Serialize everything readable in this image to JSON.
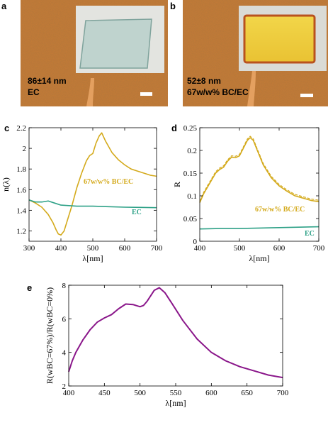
{
  "colors": {
    "gold": "#D4AA1C",
    "teal": "#2EA187",
    "purple": "#8A168A",
    "afm": "#C77A35"
  },
  "panels": {
    "a": {
      "letter": "a",
      "thickness": "86±14 nm",
      "material": "EC"
    },
    "b": {
      "letter": "b",
      "thickness": "52±8 nm",
      "material": "67w/w% BC/EC"
    }
  },
  "chart_data": [
    {
      "panel": "c",
      "type": "line",
      "xlabel": "λ[nm]",
      "ylabel": "n(λ)",
      "xlim": [
        300,
        700
      ],
      "ylim": [
        1.1,
        2.2
      ],
      "xticks": [
        300,
        400,
        500,
        600,
        700
      ],
      "yticks": [
        1.2,
        1.4,
        1.6,
        1.8,
        2,
        2.2
      ],
      "series": [
        {
          "name": "67w/w% BC/EC",
          "x": [
            300,
            320,
            340,
            360,
            375,
            385,
            392,
            400,
            410,
            420,
            435,
            450,
            465,
            480,
            490,
            500,
            510,
            520,
            528,
            540,
            560,
            580,
            600,
            620,
            640,
            660,
            680,
            700
          ],
          "y": [
            1.5,
            1.47,
            1.43,
            1.36,
            1.28,
            1.21,
            1.17,
            1.16,
            1.2,
            1.3,
            1.45,
            1.62,
            1.76,
            1.88,
            1.93,
            1.95,
            2.05,
            2.12,
            2.15,
            2.07,
            1.96,
            1.89,
            1.84,
            1.8,
            1.78,
            1.76,
            1.74,
            1.73
          ]
        },
        {
          "name": "EC",
          "x": [
            300,
            320,
            340,
            360,
            380,
            400,
            450,
            500,
            550,
            600,
            650,
            700
          ],
          "y": [
            1.5,
            1.48,
            1.48,
            1.49,
            1.47,
            1.45,
            1.44,
            1.44,
            1.435,
            1.43,
            1.428,
            1.425
          ]
        }
      ]
    },
    {
      "panel": "d",
      "type": "line",
      "xlabel": "λ[nm]",
      "ylabel": "R",
      "xlim": [
        400,
        700
      ],
      "ylim": [
        0,
        0.25
      ],
      "xticks": [
        400,
        500,
        600,
        700
      ],
      "yticks": [
        0,
        0.05,
        0.1,
        0.15,
        0.2,
        0.25
      ],
      "series": [
        {
          "name": "67w/w% BC/EC",
          "x": [
            400,
            410,
            420,
            430,
            440,
            450,
            460,
            470,
            480,
            490,
            500,
            510,
            520,
            527,
            535,
            545,
            560,
            580,
            600,
            620,
            640,
            660,
            680,
            700
          ],
          "y": [
            0.085,
            0.105,
            0.12,
            0.135,
            0.15,
            0.158,
            0.163,
            0.176,
            0.185,
            0.184,
            0.188,
            0.205,
            0.222,
            0.228,
            0.222,
            0.2,
            0.168,
            0.14,
            0.122,
            0.11,
            0.1,
            0.095,
            0.09,
            0.087
          ]
        },
        {
          "name": "EC",
          "x": [
            400,
            450,
            500,
            550,
            600,
            650,
            700
          ],
          "y": [
            0.027,
            0.028,
            0.028,
            0.029,
            0.03,
            0.031,
            0.032
          ]
        }
      ]
    },
    {
      "panel": "e",
      "type": "line",
      "xlabel": "λ[nm]",
      "ylabel": "R(wBC=67%)/R(wBC=0%)",
      "xlim": [
        400,
        700
      ],
      "ylim": [
        2,
        8
      ],
      "xticks": [
        400,
        450,
        500,
        550,
        600,
        650,
        700
      ],
      "yticks": [
        2,
        4,
        6,
        8
      ],
      "series": [
        {
          "name": "",
          "x": [
            400,
            405,
            410,
            420,
            430,
            440,
            450,
            460,
            470,
            480,
            490,
            500,
            505,
            510,
            520,
            527,
            535,
            545,
            560,
            580,
            600,
            620,
            640,
            660,
            680,
            700
          ],
          "y": [
            2.85,
            3.5,
            4.0,
            4.75,
            5.35,
            5.8,
            6.05,
            6.25,
            6.6,
            6.88,
            6.85,
            6.72,
            6.8,
            7.05,
            7.7,
            7.85,
            7.55,
            6.9,
            5.9,
            4.8,
            4.0,
            3.5,
            3.15,
            2.9,
            2.65,
            2.5
          ]
        }
      ]
    }
  ],
  "labels": {
    "c": {
      "letter": "c",
      "bc": "67w/w% BC/EC",
      "ec": "EC"
    },
    "d": {
      "letter": "d",
      "bc": "67w/w% BC/EC",
      "ec": "EC"
    },
    "e": {
      "letter": "e"
    }
  }
}
